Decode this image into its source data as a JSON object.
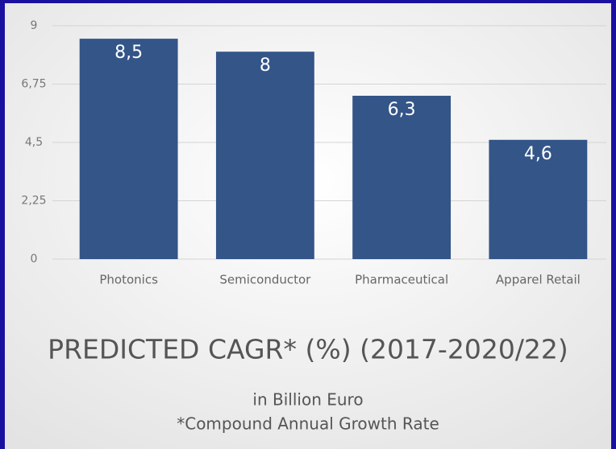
{
  "chart_data": {
    "type": "bar",
    "title": "PREDICTED CAGR* (%) (2017-2020/22)",
    "subtitle": "in Billion Euro",
    "footnote": "*Compound Annual Growth Rate",
    "categories": [
      "Photonics",
      "Semiconductor",
      "Pharmaceutical",
      "Apparel Retail"
    ],
    "values": [
      8.5,
      8,
      6.3,
      4.6
    ],
    "value_labels": [
      "8,5",
      "8",
      "6,3",
      "4,6"
    ],
    "color": "#335588",
    "ylim": [
      0,
      9
    ],
    "yticks": [
      0,
      {
        "value": 2.25,
        "label": "2,25"
      },
      {
        "value": 4.5,
        "label": "4,5"
      },
      {
        "value": 6.75,
        "label": "6,75"
      },
      9
    ],
    "grid": true
  }
}
